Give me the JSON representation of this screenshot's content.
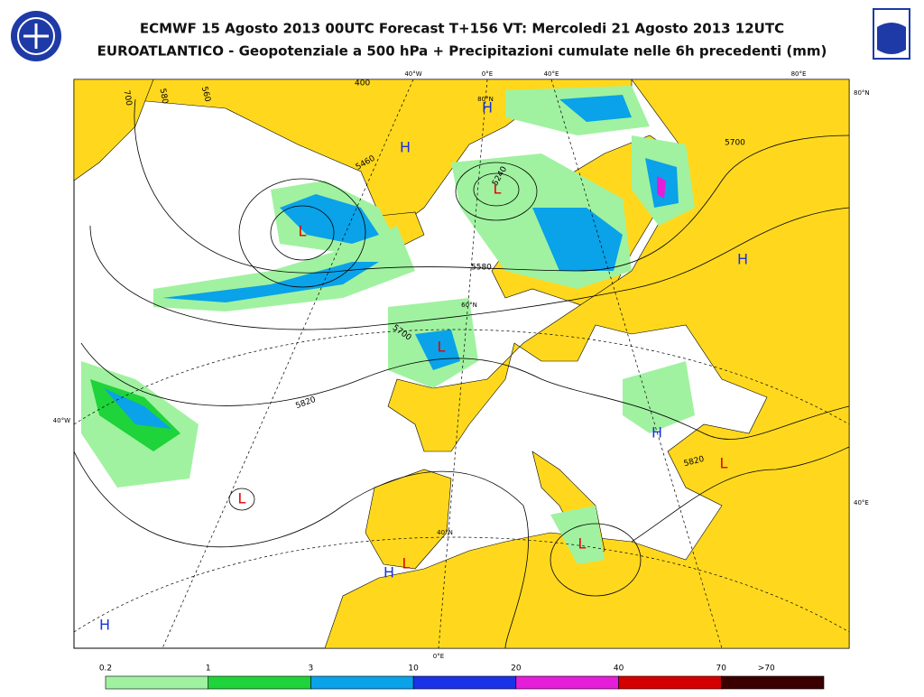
{
  "header": {
    "title_line_1": "ECMWF 15 Agosto 2013 00UTC Forecast T+156 VT: Mercoledi 21 Agosto 2013 12UTC",
    "title_line_2": "EUROATLANTICO - Geopotenziale a 500 hPa + Precipitazioni cumulate nelle 6h precedenti (mm)"
  },
  "map": {
    "graticule_labels": [
      "40°W",
      "0°E",
      "40°E",
      "80°E",
      "80°N",
      "40°W",
      "40°E",
      "0°E",
      "80°N",
      "60°N",
      "40°N"
    ],
    "contour_labels": [
      "5460",
      "5240",
      "5580",
      "5700",
      "5700",
      "5820",
      "5820",
      "700",
      "580",
      "560",
      "400"
    ],
    "pressure_centers": [
      "H",
      "H",
      "L",
      "L",
      "L",
      "H",
      "H",
      "L",
      "L",
      "H",
      "L",
      "L",
      "H"
    ]
  },
  "legend": {
    "labels": [
      "0.2",
      "1",
      "3",
      "10",
      "20",
      "40",
      "70",
      ">70"
    ],
    "colors": [
      "#a0f2a0",
      "#1fd33a",
      "#0aa2e8",
      "#1a33e6",
      "#e41ed8",
      "#d40000",
      "#3a0000"
    ]
  }
}
